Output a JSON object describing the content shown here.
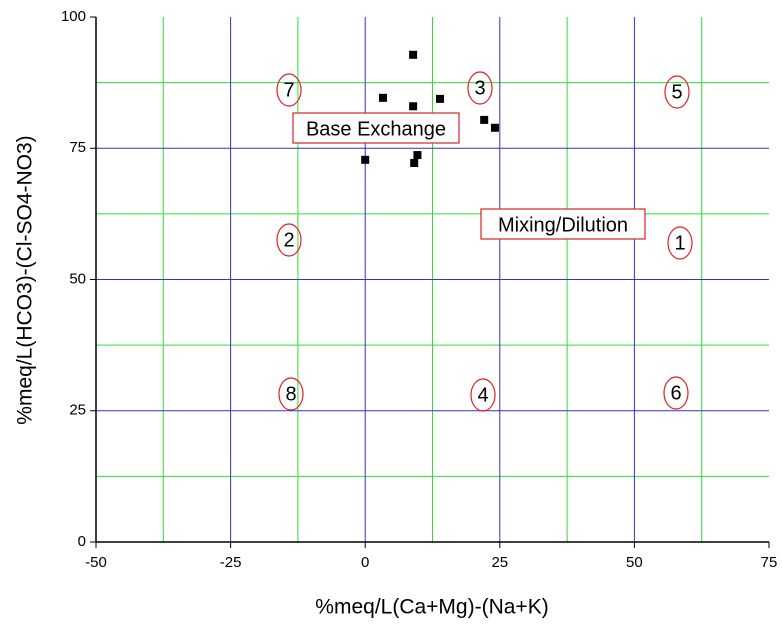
{
  "chart_data": {
    "type": "scatter",
    "x_label": "%meq/L(Ca+Mg)-(Na+K)",
    "y_label": "%meq/L(HCO3)-(Cl-SO4-NO3)",
    "x": [
      8.9,
      3.3,
      13.9,
      8.9,
      22.1,
      24.1,
      9.7,
      9.1,
      0
    ],
    "values": [
      92.8,
      84.6,
      84.4,
      83.0,
      80.4,
      78.9,
      73.7,
      72.2,
      72.8
    ],
    "color": "#000000",
    "xlim": [
      -50,
      75
    ],
    "ylim": [
      0,
      100
    ],
    "xticks": [
      -50,
      -25,
      0,
      25,
      50,
      75
    ],
    "yticks": [
      0,
      25,
      50,
      75,
      100
    ],
    "x_minor_grid": [
      -37.5,
      -12.5,
      12.5,
      37.5,
      62.5
    ],
    "y_minor_grid": [
      12.5,
      37.5,
      62.5,
      87.5
    ],
    "major_grid_color": "#3333cc",
    "minor_grid_color": "#33dd33",
    "annotations": [
      "7",
      "3",
      "5",
      "2",
      "1",
      "8",
      "4",
      "6",
      "Base Exchange",
      "Mixing/Dilution"
    ]
  }
}
